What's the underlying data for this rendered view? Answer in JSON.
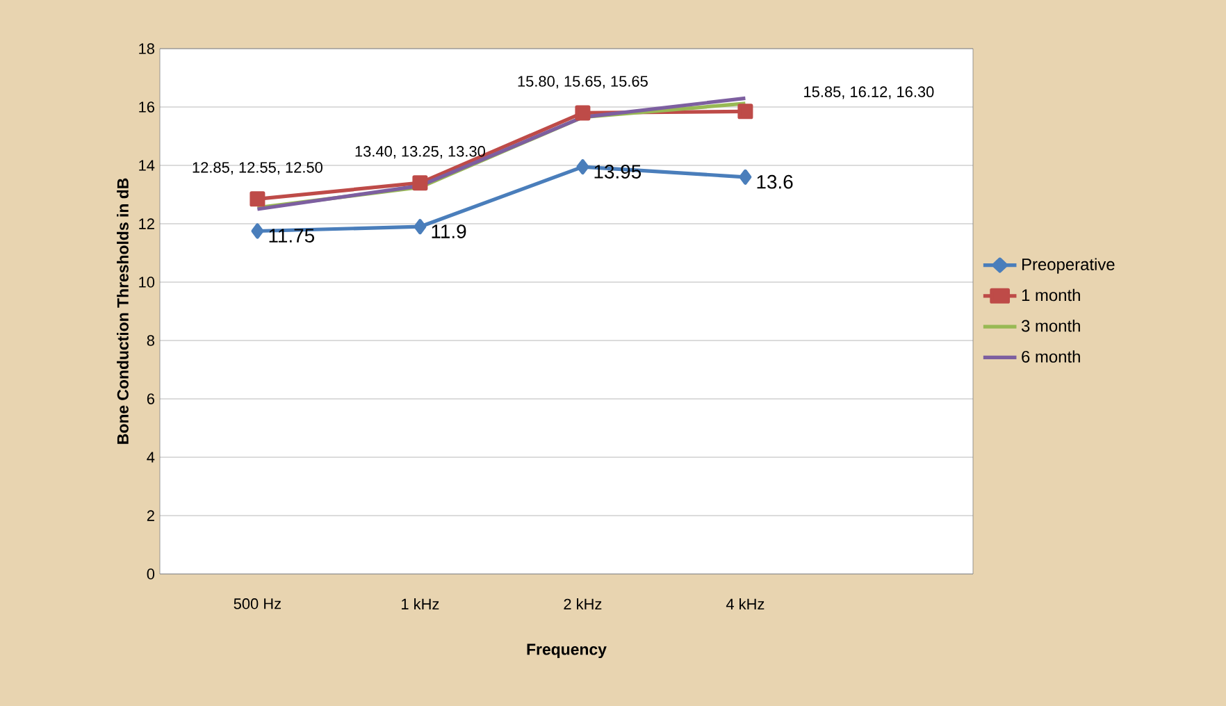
{
  "chart_data": {
    "type": "line",
    "xlabel": "Frequency",
    "ylabel": "Bone Conduction Thresholds in dB",
    "categories": [
      "500 Hz",
      "1 kHz",
      "2 kHz",
      "4 kHz"
    ],
    "series": [
      {
        "name": "Preoperative",
        "color": "#4a7ebb",
        "marker": "diamond",
        "values": [
          11.75,
          11.9,
          13.95,
          13.6
        ],
        "value_labels": [
          "11.75",
          "11.9",
          "13.95",
          "13.6"
        ]
      },
      {
        "name": "1 month",
        "color": "#be4b48",
        "marker": "square",
        "values": [
          12.85,
          13.4,
          15.8,
          15.85
        ]
      },
      {
        "name": "3 month",
        "color": "#98b954",
        "marker": "none",
        "values": [
          12.55,
          13.25,
          15.65,
          16.12
        ]
      },
      {
        "name": "6 month",
        "color": "#7d5fa0",
        "marker": "none",
        "values": [
          12.5,
          13.3,
          15.65,
          16.3
        ]
      }
    ],
    "annotations": [
      "12.85, 12.55, 12.50",
      "13.40, 13.25, 13.30",
      "15.80, 15.65, 15.65",
      "15.85, 16.12, 16.30"
    ],
    "ylim": [
      0,
      18
    ],
    "yticks": [
      0,
      2,
      4,
      6,
      8,
      10,
      12,
      14,
      16,
      18
    ],
    "grid": "y",
    "legend": "right",
    "line_style": "solid"
  }
}
